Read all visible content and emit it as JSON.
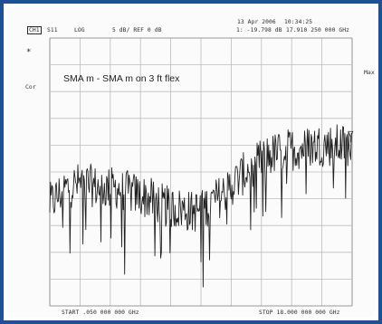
{
  "header": {
    "channel": "CH1",
    "parameter": "S11",
    "format": "LOG",
    "scale": "5 dB/ REF 0 dB",
    "date": "13 Apr 2006",
    "time": "10:34:25",
    "marker_readout": "1: -19.798 dB",
    "marker_freq": "17.910 250 000 GHz"
  },
  "side": {
    "marker_symbol": "*",
    "correction": "Cor",
    "max_label": "Max"
  },
  "trace_annotation": "SMA m - SMA m on 3 ft flex",
  "footer": {
    "start": "START .050 000 000 GHz",
    "stop": "STOP 18.000 000 000 GHz"
  },
  "colors": {
    "frame": "#1f4f95",
    "grid": "#bdbdbd",
    "trace": "#222222",
    "background": "#fbfbfb"
  },
  "chart_data": {
    "type": "line",
    "x_start_ghz": 0.05,
    "x_stop_ghz": 18.0,
    "y_ref_db": 0,
    "y_scale_db_per_div": 5,
    "y_divisions": 10,
    "x_divisions": 10,
    "grid": true,
    "envelope_db": [
      {
        "x": 0.05,
        "y": -31
      },
      {
        "x": 1.0,
        "y": -28
      },
      {
        "x": 2.0,
        "y": -27
      },
      {
        "x": 3.0,
        "y": -28
      },
      {
        "x": 4.0,
        "y": -28
      },
      {
        "x": 5.0,
        "y": -29
      },
      {
        "x": 6.0,
        "y": -30
      },
      {
        "x": 7.0,
        "y": -31.5
      },
      {
        "x": 8.0,
        "y": -32
      },
      {
        "x": 8.5,
        "y": -32.5
      },
      {
        "x": 9.0,
        "y": -32
      },
      {
        "x": 10.0,
        "y": -30
      },
      {
        "x": 11.0,
        "y": -27
      },
      {
        "x": 12.0,
        "y": -24
      },
      {
        "x": 13.0,
        "y": -22
      },
      {
        "x": 14.0,
        "y": -21
      },
      {
        "x": 15.0,
        "y": -20.5
      },
      {
        "x": 16.0,
        "y": -20
      },
      {
        "x": 17.0,
        "y": -20
      },
      {
        "x": 18.0,
        "y": -20
      }
    ],
    "ripple_db": 4
  }
}
